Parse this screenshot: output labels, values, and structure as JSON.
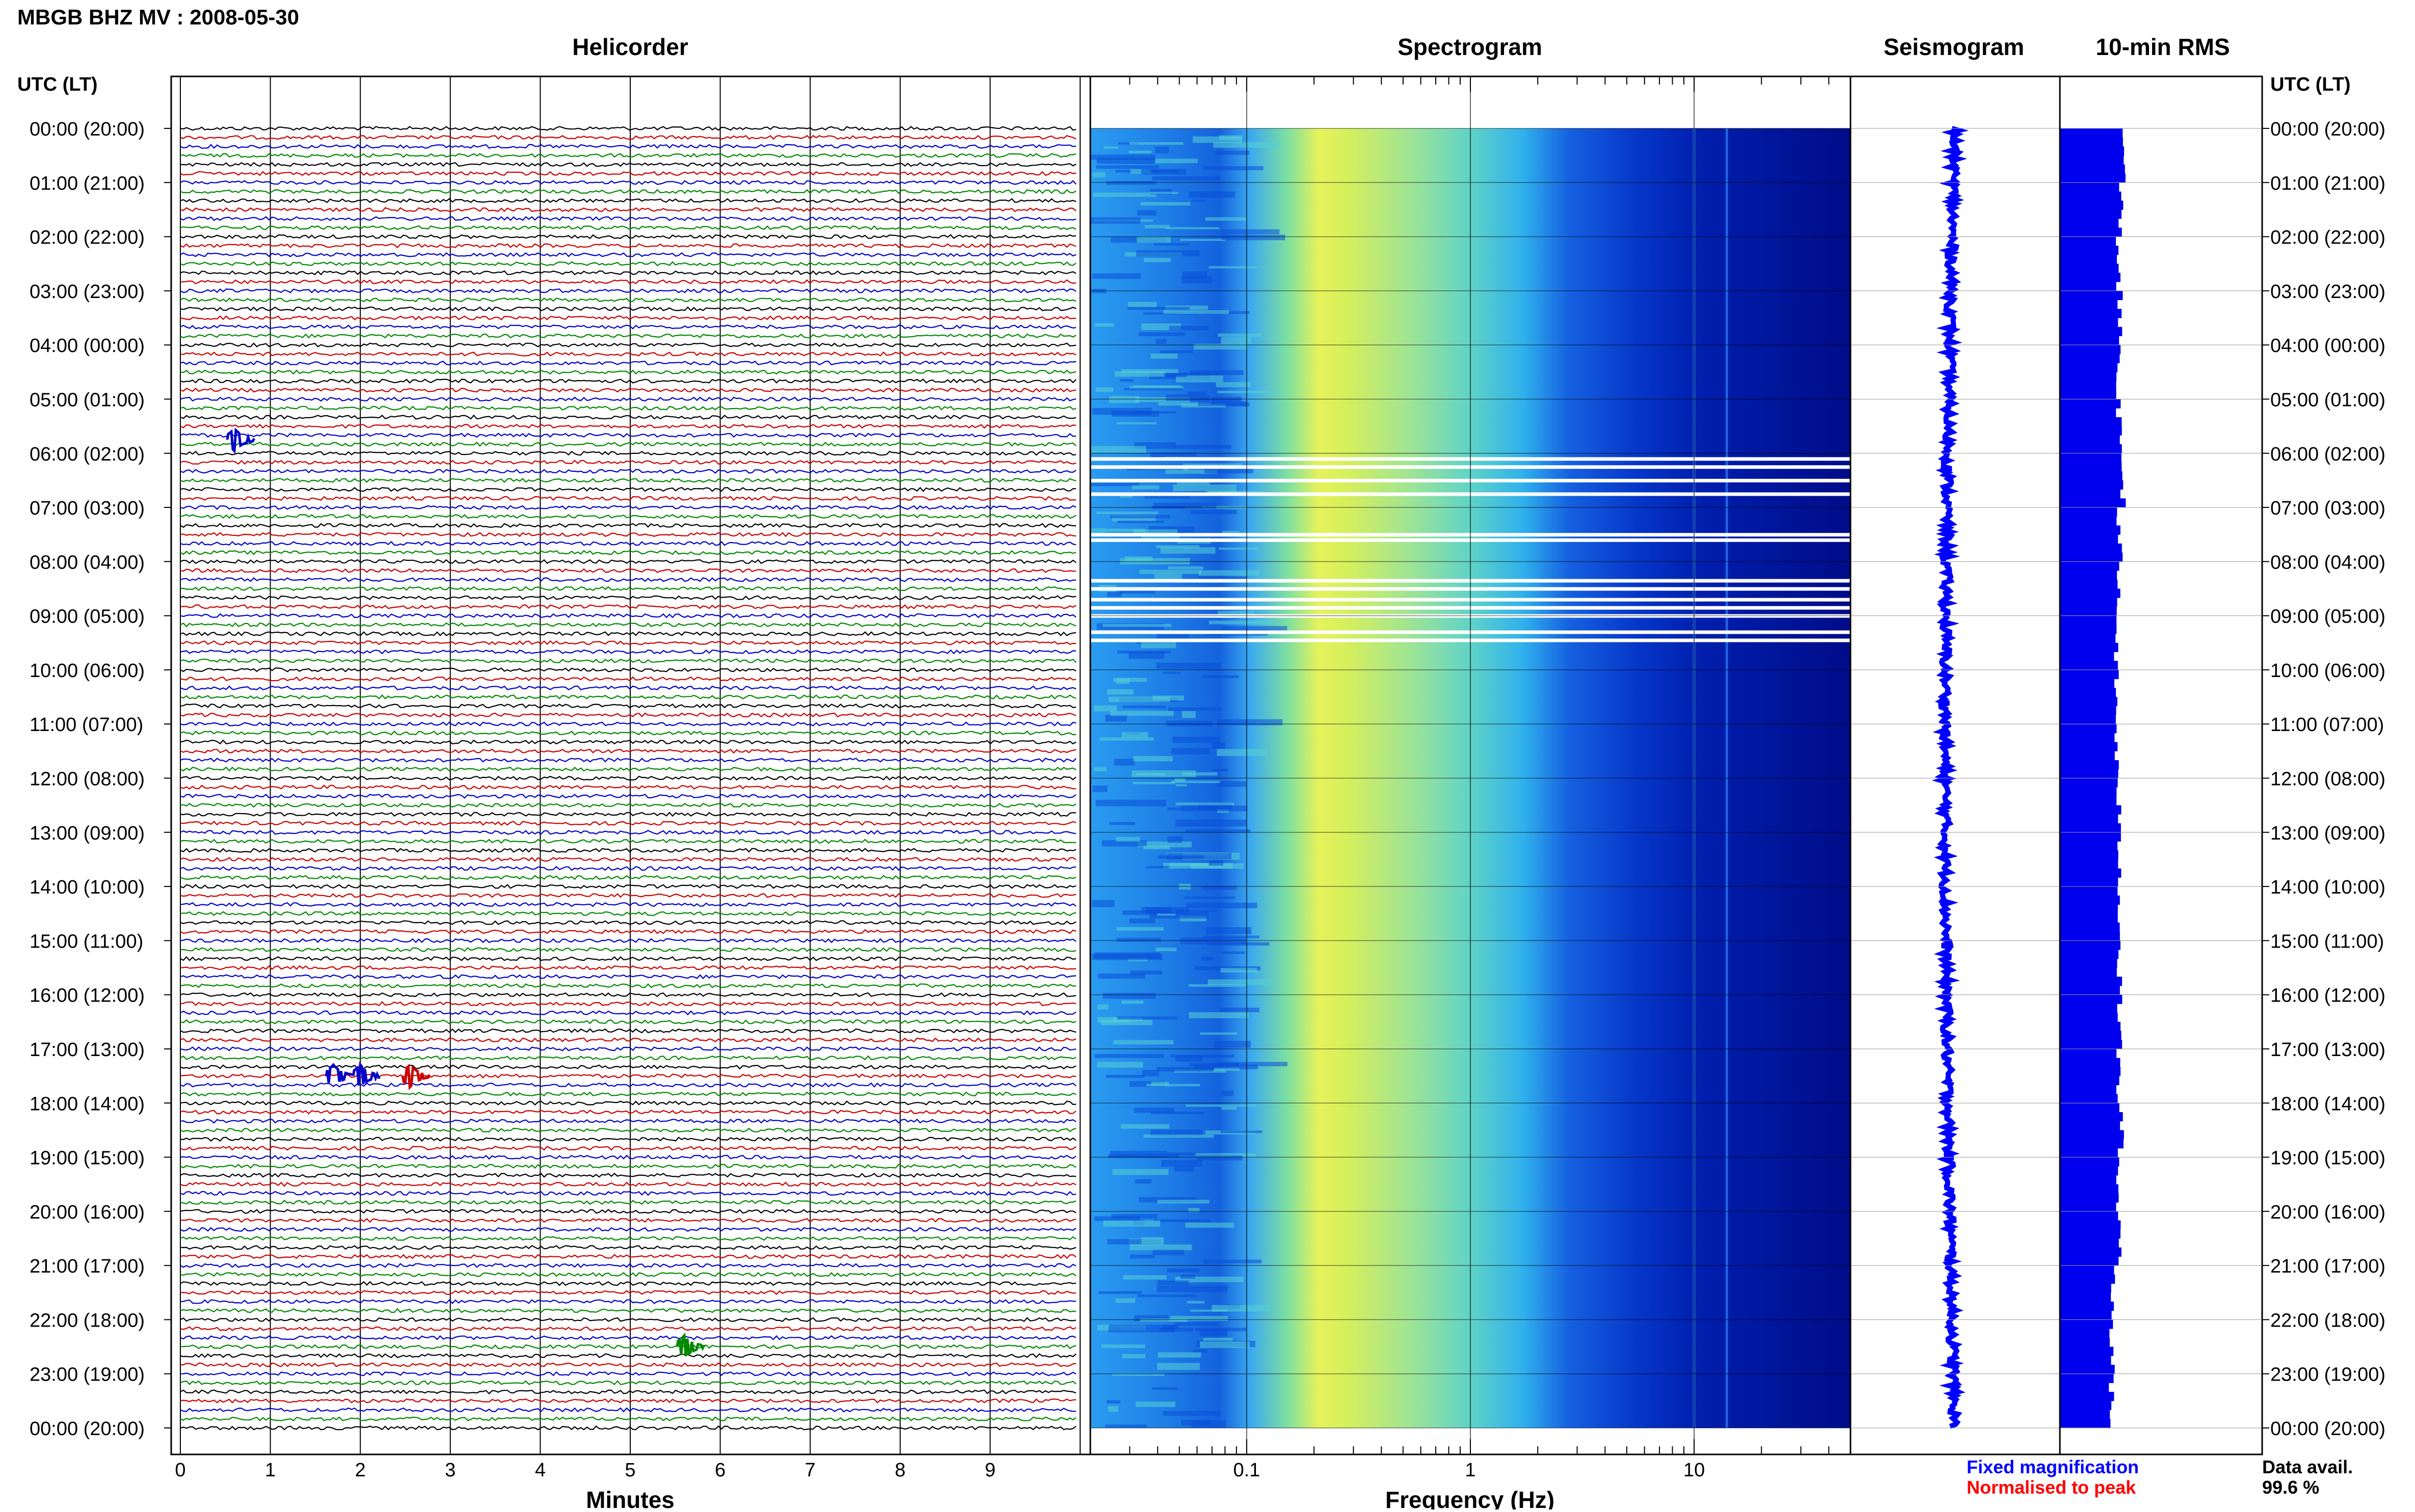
{
  "header": {
    "station_title": "MBGB BHZ MV : 2008-05-30"
  },
  "panels": {
    "helicorder_title": "Helicorder",
    "spectrogram_title": "Spectrogram",
    "seismogram_title": "Seismogram",
    "rms_title": "10-min RMS"
  },
  "axes": {
    "left_header": "UTC (LT)",
    "right_header": "UTC (LT)",
    "hour_labels": [
      "00:00 (20:00)",
      "01:00 (21:00)",
      "02:00 (22:00)",
      "03:00 (23:00)",
      "04:00 (00:00)",
      "05:00 (01:00)",
      "06:00 (02:00)",
      "07:00 (03:00)",
      "08:00 (04:00)",
      "09:00 (05:00)",
      "10:00 (06:00)",
      "11:00 (07:00)",
      "12:00 (08:00)",
      "13:00 (09:00)",
      "14:00 (10:00)",
      "15:00 (11:00)",
      "16:00 (12:00)",
      "17:00 (13:00)",
      "18:00 (14:00)",
      "19:00 (15:00)",
      "20:00 (16:00)",
      "21:00 (17:00)",
      "22:00 (18:00)",
      "23:00 (19:00)",
      "00:00 (20:00)"
    ],
    "helicorder_xlabel": "Minutes",
    "helicorder_xticks": [
      "0",
      "1",
      "2",
      "3",
      "4",
      "5",
      "6",
      "7",
      "8",
      "9"
    ],
    "spectrogram_xlabel": "Frequency (Hz)",
    "spectrogram_xticks": [
      "0.1",
      "1",
      "10"
    ]
  },
  "legend": {
    "fixed_magnification": "Fixed magnification",
    "normalised_to_peak": "Normalised to peak",
    "data_avail_label": "Data avail.",
    "data_avail_value": "99.6 %"
  },
  "colors": {
    "trace_cycle": [
      "#000000",
      "#cc0000",
      "#0000cc",
      "#008800"
    ],
    "fixed_magnification": "#0000ff",
    "normalised_to_peak": "#ff0000",
    "rms_fill": "#0000ee",
    "seismogram": "#0000ff"
  },
  "chart_data": [
    {
      "type": "line",
      "title": "Helicorder",
      "xlabel": "Minutes",
      "xlim": [
        0,
        10
      ],
      "rows_per_hour": 6,
      "ylim_hours": [
        0,
        24
      ],
      "events": [
        {
          "hour": 5.75,
          "minute": 0.6,
          "color": "#0000cc"
        },
        {
          "hour": 17.5,
          "minute": 1.7,
          "color": "#0000cc"
        },
        {
          "hour": 17.5,
          "minute": 2.0,
          "color": "#0000cc"
        },
        {
          "hour": 17.5,
          "minute": 2.55,
          "color": "#cc0000"
        },
        {
          "hour": 22.5,
          "minute": 5.6,
          "color": "#008800"
        }
      ]
    },
    {
      "type": "heatmap",
      "title": "Spectrogram",
      "xlabel": "Frequency (Hz)",
      "xscale": "log",
      "xlim": [
        0.02,
        50
      ],
      "ylim_hours": [
        0,
        24
      ],
      "persistent_line_hz": [
        10,
        14
      ],
      "data_gap_hours": [
        6.1,
        6.25,
        6.5,
        6.75,
        7.5,
        7.6,
        8.35,
        8.5,
        8.7,
        8.85,
        9.0,
        9.3,
        9.45
      ]
    },
    {
      "type": "line",
      "title": "Seismogram",
      "ylim_hours": [
        0,
        24
      ]
    },
    {
      "type": "bar",
      "title": "10-min RMS",
      "ylim_hours": [
        0,
        24
      ],
      "rms_hourly": [
        1.0,
        0.97,
        0.93,
        0.95,
        0.92,
        0.94,
        1.0,
        0.95,
        0.92,
        0.9,
        0.89,
        0.9,
        0.93,
        0.95,
        0.96,
        0.94,
        0.95,
        0.93,
        0.97,
        0.92,
        0.96,
        0.85,
        0.83,
        0.82,
        0.8
      ]
    }
  ]
}
